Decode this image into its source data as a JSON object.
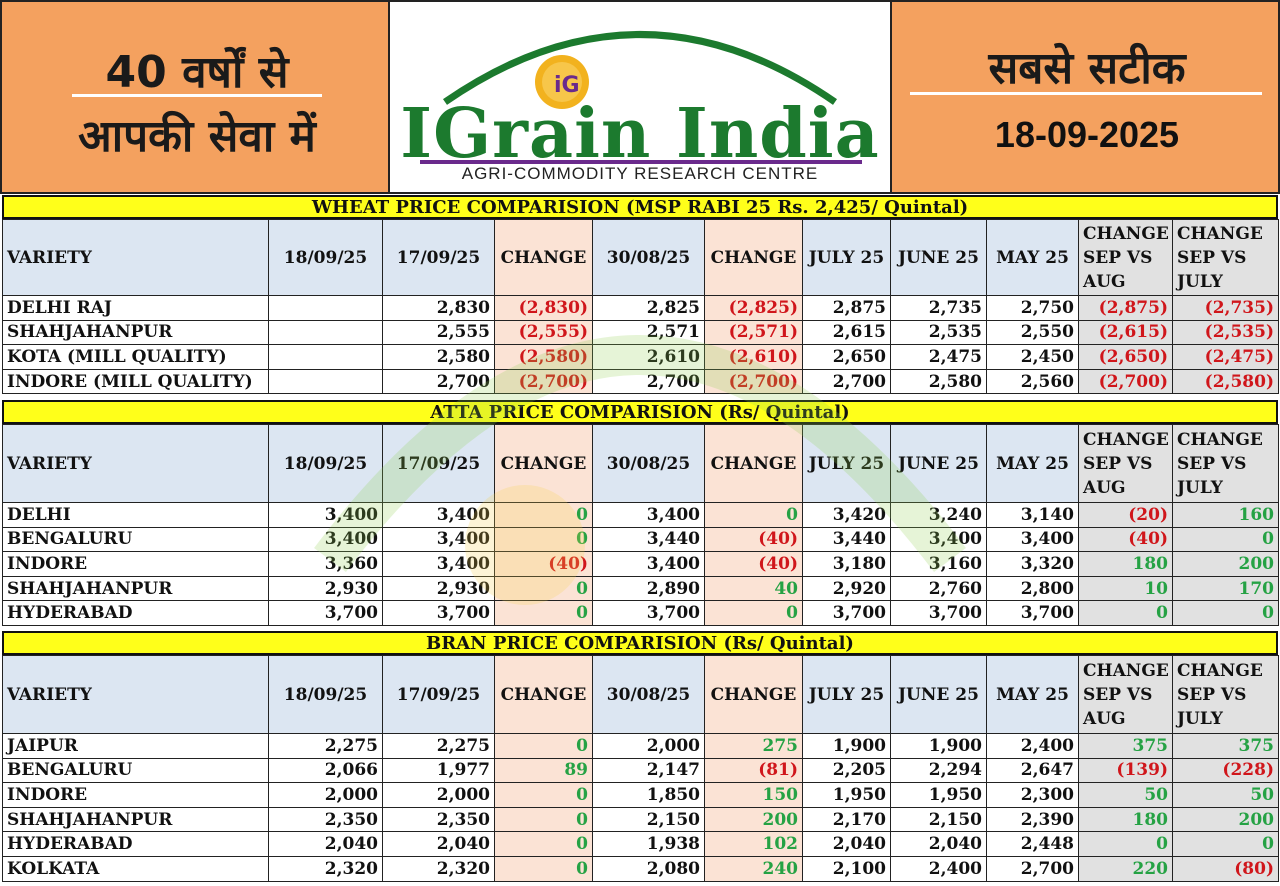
{
  "header": {
    "left_line1": "40 वर्षों से",
    "left_line2": "आपकी सेवा में",
    "logo_title": "IGrain India",
    "logo_subtitle": "AGRI-COMMODITY RESEARCH CENTRE",
    "logo_badge": "iG",
    "right_line1": "सबसे सटीक",
    "date": "18-09-2025"
  },
  "columns": [
    "VARIETY",
    "18/09/25",
    "17/09/25",
    "CHANGE",
    "30/08/25",
    "CHANGE",
    "JULY 25",
    "JUNE 25",
    "MAY 25",
    "CHANGE SEP VS AUG",
    "CHANGE SEP VS JULY"
  ],
  "colors": {
    "header_orange": "#f4a15f",
    "title_yellow": "#ffff1a",
    "header_blue": "#dce6f2",
    "change_peach": "#fbe3d5",
    "negative_red": "#d0161b",
    "positive_green": "#25a244",
    "logo_green": "#1c7a2e"
  },
  "wheat": {
    "title": "WHEAT PRICE COMPARISION (MSP RABI 25 Rs. 2,425/ Quintal)",
    "rows": [
      [
        "DELHI RAJ",
        "",
        "2,830",
        "(2,830)",
        "2,825",
        "(2,825)",
        "2,875",
        "2,735",
        "2,750",
        "(2,875)",
        "(2,735)"
      ],
      [
        "SHAHJAHANPUR",
        "",
        "2,555",
        "(2,555)",
        "2,571",
        "(2,571)",
        "2,615",
        "2,535",
        "2,550",
        "(2,615)",
        "(2,535)"
      ],
      [
        "KOTA (MILL QUALITY)",
        "",
        "2,580",
        "(2,580)",
        "2,610",
        "(2,610)",
        "2,650",
        "2,475",
        "2,450",
        "(2,650)",
        "(2,475)"
      ],
      [
        "INDORE (MILL QUALITY)",
        "",
        "2,700",
        "(2,700)",
        "2,700",
        "(2,700)",
        "2,700",
        "2,580",
        "2,560",
        "(2,700)",
        "(2,580)"
      ]
    ]
  },
  "atta": {
    "title": "ATTA PRICE COMPARISION (Rs/ Quintal)",
    "rows": [
      [
        "DELHI",
        "3,400",
        "3,400",
        "0",
        "3,400",
        "0",
        "3,420",
        "3,240",
        "3,140",
        "(20)",
        "160"
      ],
      [
        "BENGALURU",
        "3,400",
        "3,400",
        "0",
        "3,440",
        "(40)",
        "3,440",
        "3,400",
        "3,400",
        "(40)",
        "0"
      ],
      [
        "INDORE",
        "3,360",
        "3,400",
        "(40)",
        "3,400",
        "(40)",
        "3,180",
        "3,160",
        "3,320",
        "180",
        "200"
      ],
      [
        "SHAHJAHANPUR",
        "2,930",
        "2,930",
        "0",
        "2,890",
        "40",
        "2,920",
        "2,760",
        "2,800",
        "10",
        "170"
      ],
      [
        "HYDERABAD",
        "3,700",
        "3,700",
        "0",
        "3,700",
        "0",
        "3,700",
        "3,700",
        "3,700",
        "0",
        "0"
      ]
    ]
  },
  "bran": {
    "title": "BRAN PRICE COMPARISION (Rs/ Quintal)",
    "rows": [
      [
        "JAIPUR",
        "2,275",
        "2,275",
        "0",
        "2,000",
        "275",
        "1,900",
        "1,900",
        "2,400",
        "375",
        "375"
      ],
      [
        "BENGALURU",
        "2,066",
        "1,977",
        "89",
        "2,147",
        "(81)",
        "2,205",
        "2,294",
        "2,647",
        "(139)",
        "(228)"
      ],
      [
        "INDORE",
        "2,000",
        "2,000",
        "0",
        "1,850",
        "150",
        "1,950",
        "1,950",
        "2,300",
        "50",
        "50"
      ],
      [
        "SHAHJAHANPUR",
        "2,350",
        "2,350",
        "0",
        "2,150",
        "200",
        "2,170",
        "2,150",
        "2,390",
        "180",
        "200"
      ],
      [
        "HYDERABAD",
        "2,040",
        "2,040",
        "0",
        "1,938",
        "102",
        "2,040",
        "2,040",
        "2,448",
        "0",
        "0"
      ],
      [
        "KOLKATA",
        "2,320",
        "2,320",
        "0",
        "2,080",
        "240",
        "2,100",
        "2,400",
        "2,700",
        "220",
        "(80)"
      ]
    ]
  }
}
